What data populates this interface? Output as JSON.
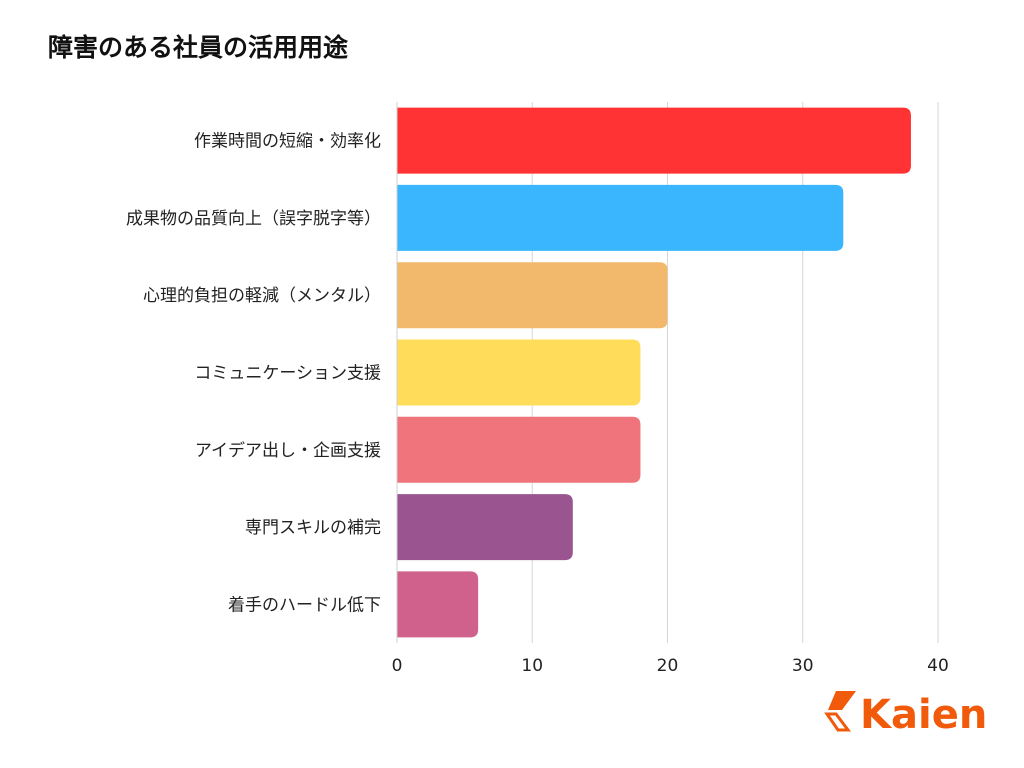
{
  "chart_data": {
    "type": "bar",
    "orientation": "horizontal",
    "title": "障害のある社員の活用用途",
    "categories": [
      "作業時間の短縮・効率化",
      "成果物の品質向上（誤字脱字等）",
      "心理的負担の軽減（メンタル）",
      "コミュニケーション支援",
      "アイデア出し・企画支援",
      "専門スキルの補完",
      "着手のハードル低下"
    ],
    "values": [
      38,
      33,
      20,
      18,
      18,
      13,
      6
    ],
    "colors": [
      "#ff3333",
      "#3ab6ff",
      "#f2b96d",
      "#ffdd5a",
      "#ef747c",
      "#9a5590",
      "#d0608c"
    ],
    "xlim": [
      0,
      40
    ],
    "xticks": [
      "0",
      "10",
      "20",
      "30",
      "40"
    ],
    "grid": true,
    "xlabel": "",
    "ylabel": ""
  },
  "logo": {
    "text": "Kaien",
    "color": "#f05a0a"
  }
}
